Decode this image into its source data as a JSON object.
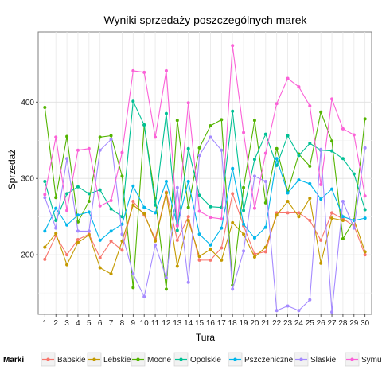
{
  "chart_data": {
    "type": "line",
    "title": "Wyniki sprzedaży poszczególnych marek",
    "xlabel": "Tura",
    "ylabel": "Sprzedaż",
    "x": [
      1,
      2,
      3,
      4,
      5,
      6,
      7,
      8,
      9,
      10,
      11,
      12,
      13,
      14,
      15,
      16,
      17,
      18,
      19,
      20,
      21,
      22,
      23,
      24,
      25,
      26,
      27,
      28,
      29,
      30
    ],
    "xlim": [
      0.4,
      30.6
    ],
    "ylim": [
      122,
      492
    ],
    "yticks": [
      200,
      300,
      400
    ],
    "grid": true,
    "legend_position": "bottom",
    "legend_title": "Marki",
    "series": [
      {
        "name": "Babskie",
        "color": "#F8766D",
        "values": [
          194,
          225,
          200,
          220,
          227,
          196,
          218,
          206,
          270,
          252,
          221,
          282,
          219,
          250,
          193,
          193,
          209,
          280,
          238,
          201,
          204,
          255,
          255,
          255,
          245,
          219,
          255,
          247,
          238,
          200
        ]
      },
      {
        "name": "Lebskie",
        "color": "#C49A00",
        "values": [
          210,
          228,
          187,
          216,
          226,
          183,
          175,
          218,
          265,
          254,
          218,
          281,
          185,
          245,
          198,
          207,
          193,
          242,
          227,
          197,
          210,
          252,
          270,
          250,
          274,
          189,
          248,
          245,
          246,
          204
        ]
      },
      {
        "name": "Mocne",
        "color": "#53B400",
        "values": [
          393,
          275,
          355,
          243,
          270,
          354,
          356,
          303,
          157,
          370,
          274,
          155,
          376,
          262,
          340,
          369,
          377,
          160,
          288,
          376,
          268,
          339,
          283,
          332,
          316,
          387,
          349,
          221,
          245,
          378
        ]
      },
      {
        "name": "Opolskie",
        "color": "#00C094",
        "values": [
          296,
          245,
          280,
          289,
          280,
          285,
          260,
          250,
          401,
          370,
          265,
          385,
          232,
          339,
          278,
          263,
          262,
          388,
          258,
          325,
          358,
          317,
          356,
          330,
          346,
          337,
          336,
          326,
          306,
          259
        ]
      },
      {
        "name": "Pszczeniczne",
        "color": "#00B6EB",
        "values": [
          231,
          261,
          239,
          252,
          256,
          219,
          231,
          240,
          290,
          262,
          255,
          296,
          239,
          296,
          227,
          213,
          235,
          313,
          240,
          222,
          236,
          326,
          281,
          298,
          293,
          273,
          286,
          250,
          245,
          248
        ]
      },
      {
        "name": "Slaskie",
        "color": "#A58AFF",
        "values": [
          275,
          235,
          326,
          231,
          231,
          337,
          351,
          227,
          175,
          145,
          213,
          170,
          288,
          164,
          330,
          354,
          337,
          155,
          205,
          303,
          296,
          127,
          133,
          127,
          141,
          338,
          125,
          270,
          235,
          340
        ]
      },
      {
        "name": "Symulow",
        "color": "#FB61D7",
        "values": [
          279,
          354,
          258,
          337,
          339,
          264,
          271,
          334,
          441,
          439,
          354,
          441,
          238,
          399,
          257,
          249,
          247,
          474,
          360,
          261,
          333,
          398,
          431,
          420,
          395,
          292,
          404,
          365,
          357,
          277
        ]
      }
    ]
  }
}
